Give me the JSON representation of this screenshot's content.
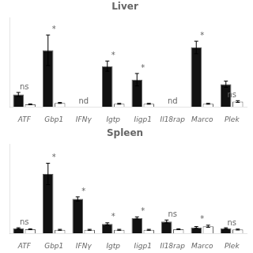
{
  "chart_data": [
    {
      "type": "bar",
      "title": "Liver",
      "categories": [
        "ATF",
        "Gbp1",
        "IFNγ",
        "Igtp",
        "Iigp1",
        "Il18rap",
        "Marco",
        "Plek"
      ],
      "series": [
        {
          "color": "#111111",
          "values": [
            0.22,
            1.0,
            null,
            0.72,
            0.48,
            null,
            1.05,
            0.4
          ],
          "errors": [
            0.035,
            0.27,
            null,
            0.09,
            0.11,
            null,
            0.11,
            0.055
          ]
        },
        {
          "color": "#ffffff",
          "values": [
            0.045,
            0.07,
            null,
            0.055,
            0.055,
            null,
            0.055,
            0.095
          ],
          "errors": [
            0.008,
            0.008,
            null,
            0.008,
            0.008,
            null,
            0.008,
            0.015
          ]
        }
      ],
      "ylim": [
        0,
        1.575
      ],
      "yticks": [],
      "grid": false,
      "tick_labels": "x",
      "annotations": [
        {
          "text": "ns",
          "category": "ATF",
          "series": 0
        },
        {
          "text": "*",
          "category": "Gbp1",
          "series": 0
        },
        {
          "text": "nd",
          "category": "IFNγ"
        },
        {
          "text": "*",
          "category": "Igtp",
          "series": 0
        },
        {
          "text": "*",
          "category": "Iigp1",
          "series": 0
        },
        {
          "text": "nd",
          "category": "Il18rap"
        },
        {
          "text": "*",
          "category": "Marco",
          "series": 0
        },
        {
          "text": "ns",
          "category": "Plek",
          "series": 1
        }
      ]
    },
    {
      "type": "bar",
      "title": "Spleen",
      "categories": [
        "ATF",
        "Gbp1",
        "IFNγ",
        "Igtp",
        "Iigp1",
        "Il18rap",
        "Marco",
        "Plek"
      ],
      "series": [
        {
          "color": "#111111",
          "values": [
            0.085,
            1.0,
            0.58,
            0.16,
            0.26,
            0.2,
            0.1,
            0.085
          ],
          "errors": [
            0.01,
            0.18,
            0.035,
            0.018,
            0.018,
            0.025,
            0.015,
            0.01
          ]
        },
        {
          "color": "#ffffff",
          "values": [
            0.07,
            0.06,
            0.06,
            0.06,
            0.06,
            0.07,
            0.12,
            0.065
          ],
          "errors": [
            0.008,
            0.008,
            0.008,
            0.008,
            0.008,
            0.008,
            0.018,
            0.008
          ]
        }
      ],
      "ylim": [
        0,
        1.5
      ],
      "yticks": [],
      "grid": false,
      "tick_labels": "x",
      "annotations": [
        {
          "text": "ns",
          "category": "ATF",
          "series": 0
        },
        {
          "text": "*",
          "category": "Gbp1",
          "series": 0
        },
        {
          "text": "*",
          "category": "IFNγ",
          "series": 0
        },
        {
          "text": "*",
          "category": "Igtp",
          "series": 0
        },
        {
          "text": "*",
          "category": "Iigp1",
          "series": 0
        },
        {
          "text": "ns",
          "category": "Il18rap",
          "series": 0
        },
        {
          "text": "*",
          "category": "Marco",
          "series": 1
        },
        {
          "text": "ns",
          "category": "Plek",
          "series": 1
        }
      ]
    }
  ]
}
